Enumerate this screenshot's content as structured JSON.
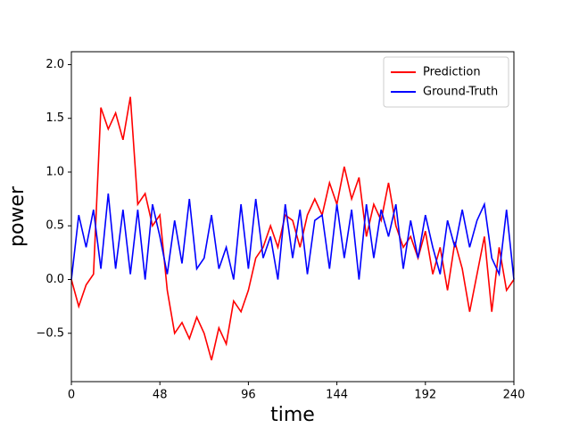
{
  "chart_data": {
    "type": "line",
    "x_label": "time",
    "y_label": "power",
    "x": [
      0,
      4,
      8,
      12,
      16,
      20,
      24,
      28,
      32,
      36,
      40,
      44,
      48,
      52,
      56,
      60,
      64,
      68,
      72,
      76,
      80,
      84,
      88,
      92,
      96,
      100,
      104,
      108,
      112,
      116,
      120,
      124,
      128,
      132,
      136,
      140,
      144,
      148,
      152,
      156,
      160,
      164,
      168,
      172,
      176,
      180,
      184,
      188,
      192,
      196,
      200,
      204,
      208,
      212,
      216,
      220,
      224,
      228,
      232,
      236,
      240
    ],
    "series": [
      {
        "name": "Prediction",
        "color": "#ff0000",
        "values": [
          0.0,
          -0.25,
          -0.05,
          0.05,
          1.6,
          1.4,
          1.55,
          1.3,
          1.7,
          0.7,
          0.8,
          0.5,
          0.6,
          -0.1,
          -0.5,
          -0.4,
          -0.55,
          -0.35,
          -0.5,
          -0.75,
          -0.45,
          -0.6,
          -0.2,
          -0.3,
          -0.1,
          0.2,
          0.3,
          0.5,
          0.3,
          0.6,
          0.55,
          0.3,
          0.6,
          0.75,
          0.6,
          0.9,
          0.7,
          1.05,
          0.75,
          0.95,
          0.4,
          0.7,
          0.55,
          0.9,
          0.5,
          0.3,
          0.4,
          0.2,
          0.45,
          0.05,
          0.3,
          -0.1,
          0.35,
          0.1,
          -0.3,
          0.05,
          0.4,
          -0.3,
          0.3,
          -0.1,
          0.0
        ]
      },
      {
        "name": "Ground-Truth",
        "color": "#0000ff",
        "values": [
          0.0,
          0.6,
          0.3,
          0.65,
          0.1,
          0.8,
          0.1,
          0.65,
          0.05,
          0.65,
          0.0,
          0.7,
          0.4,
          0.05,
          0.55,
          0.15,
          0.75,
          0.1,
          0.2,
          0.6,
          0.1,
          0.3,
          0.0,
          0.7,
          0.1,
          0.75,
          0.2,
          0.4,
          0.0,
          0.7,
          0.2,
          0.65,
          0.05,
          0.55,
          0.6,
          0.1,
          0.7,
          0.2,
          0.65,
          0.0,
          0.7,
          0.2,
          0.65,
          0.4,
          0.7,
          0.1,
          0.55,
          0.2,
          0.6,
          0.3,
          0.05,
          0.55,
          0.3,
          0.65,
          0.3,
          0.55,
          0.7,
          0.2,
          0.05,
          0.65,
          0.0
        ]
      }
    ],
    "xlim": [
      0,
      240
    ],
    "xticks": [
      0,
      48,
      96,
      144,
      192,
      240
    ],
    "ylim": [
      -0.95,
      2.12
    ],
    "yticks": [
      {
        "value": -0.5,
        "label": "−0.5"
      },
      {
        "value": 0,
        "label": "0.0"
      },
      0.5,
      {
        "value": 1,
        "label": "1.0"
      },
      1.5,
      {
        "value": 2,
        "label": "2.0"
      }
    ],
    "grid": false,
    "legend": "upper right"
  }
}
